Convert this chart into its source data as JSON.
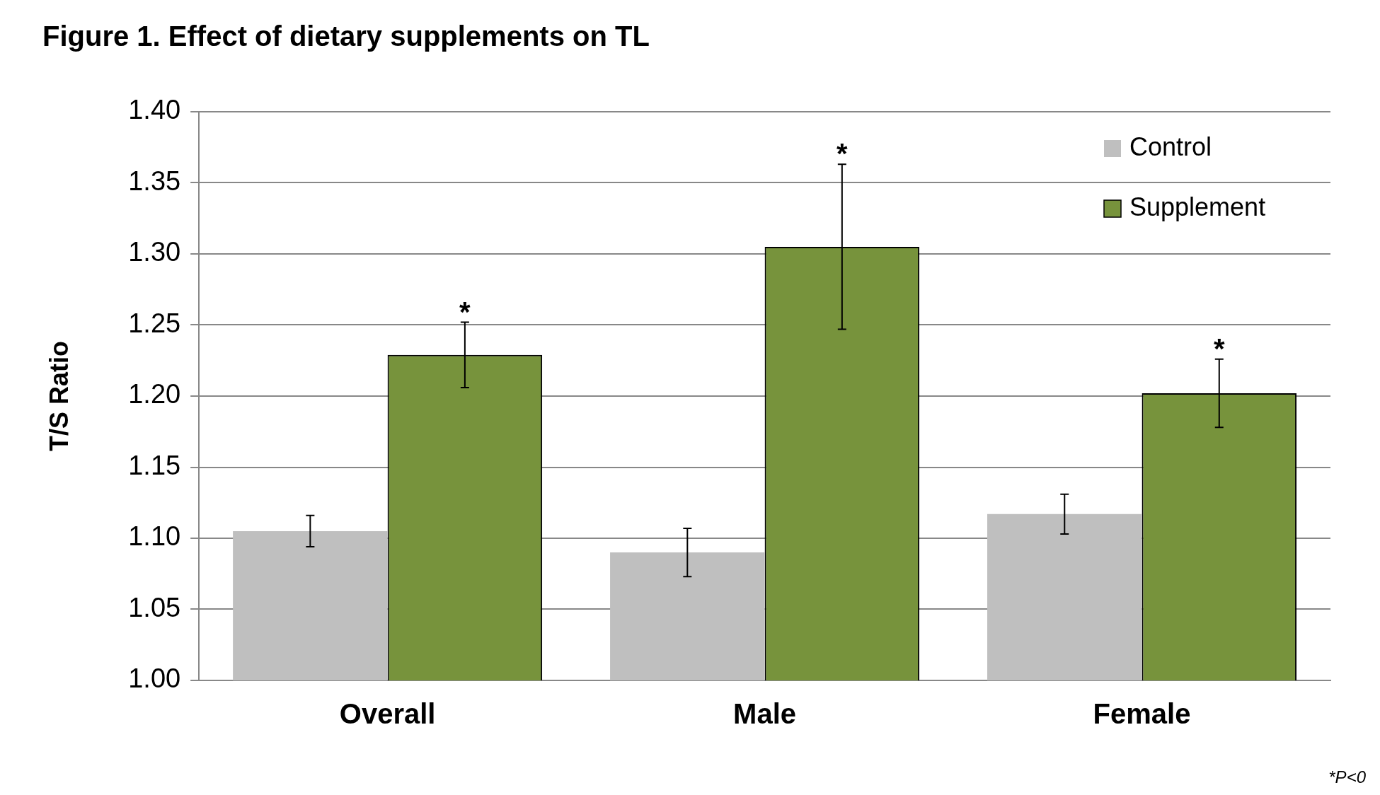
{
  "chart_data": {
    "type": "bar",
    "title": "Figure 1. Effect of dietary supplements on TL",
    "ylabel": "T/S Ratio",
    "categories": [
      "Overall",
      "Male",
      "Female"
    ],
    "series": [
      {
        "name": "Control",
        "color": "#bfbfbf",
        "values": [
          1.105,
          1.09,
          1.117
        ],
        "errors": [
          0.011,
          0.017,
          0.014
        ]
      },
      {
        "name": "Supplement",
        "color": "#77933c",
        "values": [
          1.229,
          1.305,
          1.202
        ],
        "errors": [
          0.023,
          0.058,
          0.024
        ]
      }
    ],
    "ylim": [
      1.0,
      1.4
    ],
    "yticks": [
      {
        "value": 1.0,
        "label": "1.00"
      },
      {
        "value": 1.05,
        "label": "1.05"
      },
      {
        "value": 1.1,
        "label": "1.10"
      },
      {
        "value": 1.15,
        "label": "1.15"
      },
      {
        "value": 1.2,
        "label": "1.20"
      },
      {
        "value": 1.25,
        "label": "1.25"
      },
      {
        "value": 1.3,
        "label": "1.30"
      },
      {
        "value": 1.35,
        "label": "1.35"
      },
      {
        "value": 1.4,
        "label": "1.40"
      }
    ],
    "grid": "y",
    "legend": "top right",
    "annotations": [
      "*",
      "*",
      "*",
      "*P<0"
    ]
  }
}
